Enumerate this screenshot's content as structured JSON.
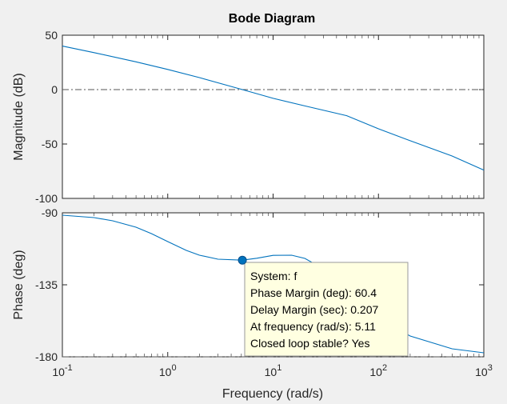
{
  "chart_data": {
    "type": "line",
    "title": "Bode Diagram",
    "xlabel": "Frequency  (rad/s)",
    "x_scale": "log",
    "xlim": [
      0.1,
      1000
    ],
    "x_ticks": [
      {
        "value": 0.1,
        "base": "10",
        "exp": "-1"
      },
      {
        "value": 1,
        "base": "10",
        "exp": "0"
      },
      {
        "value": 10,
        "base": "10",
        "exp": "1"
      },
      {
        "value": 100,
        "base": "10",
        "exp": "2"
      },
      {
        "value": 1000,
        "base": "10",
        "exp": "3"
      }
    ],
    "line_color": "#0072bd",
    "magnitude": {
      "ylabel": "Magnitude (dB)",
      "ylim": [
        -100,
        50
      ],
      "y_ticks": [
        "50",
        "0",
        "-50",
        "-100"
      ],
      "reference_line": 0,
      "x": [
        0.1,
        0.2,
        0.5,
        1,
        2,
        5.11,
        10,
        20,
        50,
        100,
        200,
        500,
        1000
      ],
      "y": [
        40,
        34,
        25.5,
        18.5,
        11,
        0,
        -8,
        -15,
        -24,
        -36,
        -47,
        -61,
        -74
      ]
    },
    "phase": {
      "ylabel": "Phase (deg)",
      "ylim": [
        -180,
        -90
      ],
      "y_ticks": [
        "-90",
        "-135",
        "-180"
      ],
      "reference_line": -180,
      "x": [
        0.1,
        0.2,
        0.3,
        0.5,
        0.7,
        1,
        1.5,
        2,
        3,
        5.11,
        7,
        10,
        15,
        20,
        30,
        50,
        100,
        200,
        500,
        1000
      ],
      "y": [
        -91.5,
        -93,
        -95,
        -99,
        -103,
        -108,
        -113.5,
        -116.5,
        -119,
        -119.6,
        -118.4,
        -116.6,
        -116.5,
        -118.5,
        -125,
        -137,
        -156,
        -167,
        -175,
        -177.5
      ]
    },
    "marker": {
      "x": 5.11,
      "y": -119.6,
      "tooltip": [
        "System: f",
        "Phase Margin (deg): 60.4",
        "Delay Margin (sec): 0.207",
        "At frequency (rad/s): 5.11",
        "Closed loop stable? Yes"
      ]
    }
  }
}
